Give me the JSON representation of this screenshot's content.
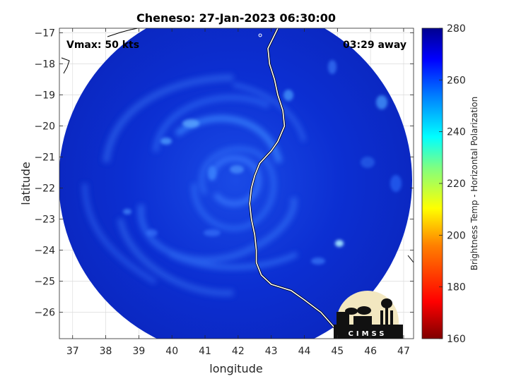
{
  "title": "Cheneso: 27-Jan-2023 06:30:00",
  "vmax_label": "Vmax: 50 kts",
  "time_away_label": "03:29 away",
  "xlabel": "longitude",
  "ylabel": "latitude",
  "colorbar_label": "Brightness Temp - Horizontal Polarization",
  "logo_text": "CIMSS",
  "grid": true,
  "colors": {
    "background": "#0a2fd8",
    "coastline": "#ffffff",
    "colormap": [
      "#7f0000",
      "#ff0000",
      "#ff8000",
      "#ffff00",
      "#80ff80",
      "#00ffff",
      "#0080ff",
      "#0000ff",
      "#00008f"
    ]
  },
  "chart_data": {
    "type": "heatmap",
    "title": "Cheneso: 27-Jan-2023 06:30:00",
    "xlabel": "longitude",
    "ylabel": "latitude",
    "xlim": [
      36.6,
      47.3
    ],
    "ylim": [
      -26.85,
      -16.85
    ],
    "x_ticks": [
      37,
      38,
      39,
      40,
      41,
      42,
      43,
      44,
      45,
      46,
      47
    ],
    "y_ticks": [
      -17,
      -18,
      -19,
      -20,
      -21,
      -22,
      -23,
      -24,
      -25,
      -26
    ],
    "colorbar": {
      "min": 160,
      "max": 280,
      "ticks": [
        160,
        180,
        200,
        220,
        240,
        260,
        280
      ],
      "label": "Brightness Temp - Horizontal Polarization"
    },
    "storm_center": {
      "lon": 42.0,
      "lat": -22.0
    },
    "swath_center": {
      "lon": 41.85,
      "lat": -21.85
    },
    "coastline": [
      [
        43.2,
        -16.85
      ],
      [
        42.9,
        -17.5
      ],
      [
        42.95,
        -18.0
      ],
      [
        43.1,
        -18.5
      ],
      [
        43.2,
        -19.0
      ],
      [
        43.35,
        -19.5
      ],
      [
        43.4,
        -20.0
      ],
      [
        43.2,
        -20.5
      ],
      [
        43.0,
        -20.8
      ],
      [
        42.65,
        -21.2
      ],
      [
        42.5,
        -21.6
      ],
      [
        42.4,
        -22.0
      ],
      [
        42.35,
        -22.5
      ],
      [
        42.4,
        -23.0
      ],
      [
        42.5,
        -23.5
      ],
      [
        42.55,
        -24.0
      ],
      [
        42.55,
        -24.4
      ],
      [
        42.7,
        -24.8
      ],
      [
        43.0,
        -25.1
      ],
      [
        43.3,
        -25.2
      ],
      [
        43.6,
        -25.3
      ],
      [
        44.0,
        -25.6
      ],
      [
        44.5,
        -26.0
      ],
      [
        45.0,
        -26.6
      ]
    ]
  }
}
